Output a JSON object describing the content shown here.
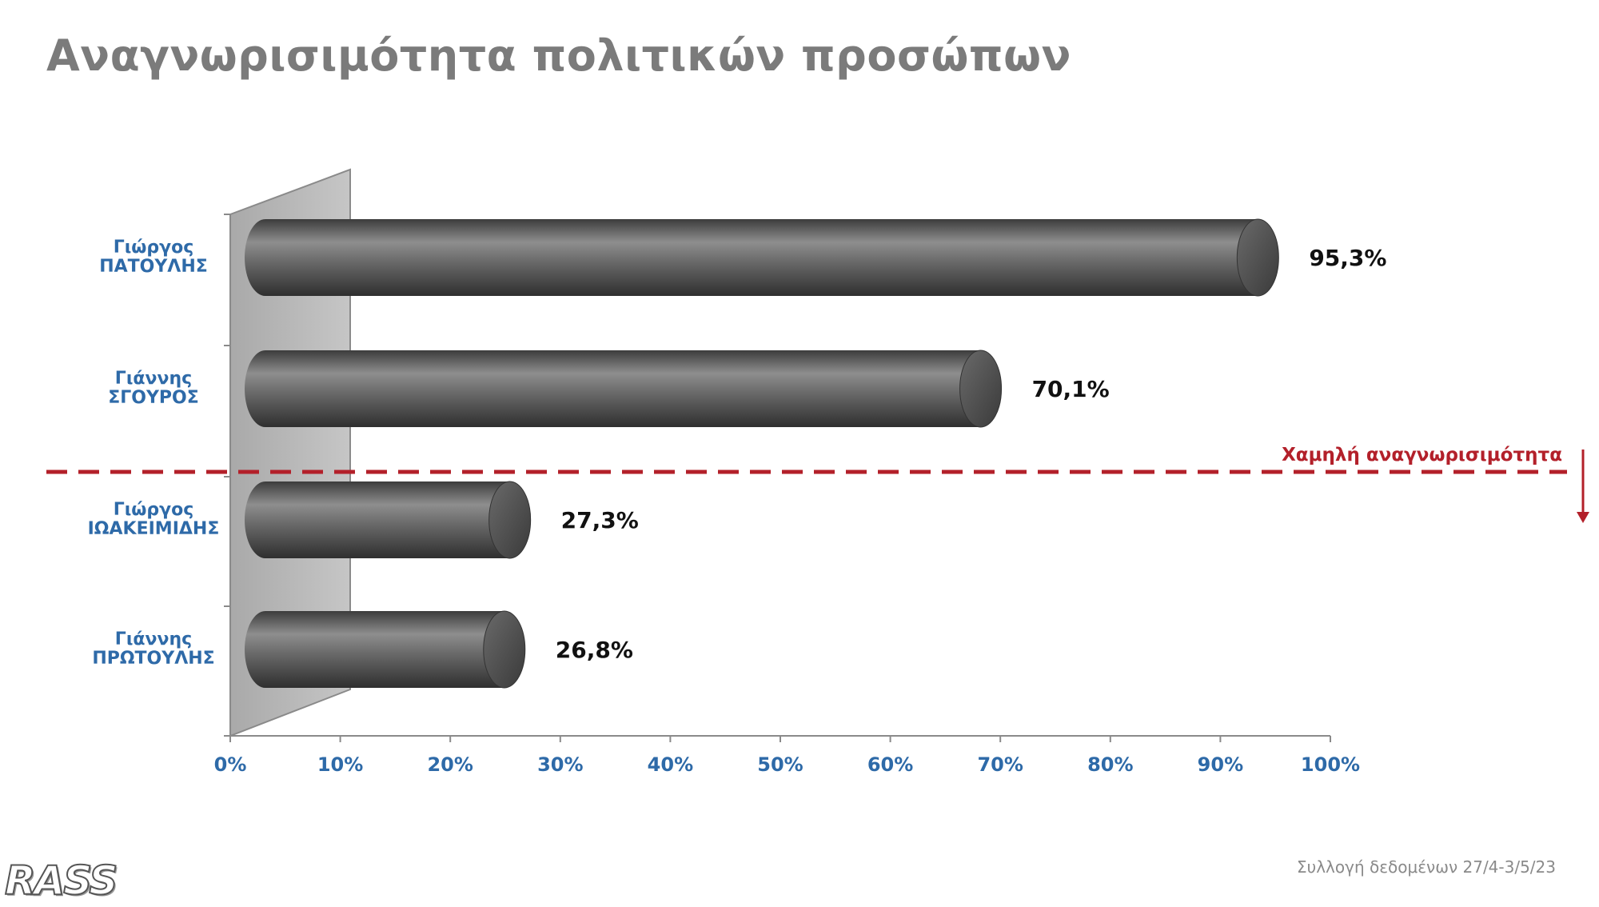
{
  "title": "Αναγνωρισιμότητα πολιτικών προσώπων",
  "footer": {
    "logo_text": "RASS",
    "source": "Συλλογή δεδομένων 27/4-3/5/23"
  },
  "chart_data": {
    "type": "bar",
    "orientation": "horizontal",
    "categories": [
      [
        "Γιώργος",
        "ΠΑΤΟΥΛΗΣ"
      ],
      [
        "Γιάννης",
        "ΣΓΟΥΡΟΣ"
      ],
      [
        "Γιώργος",
        "ΙΩΑΚΕΙΜΙΔΗΣ"
      ],
      [
        "Γιάννης",
        "ΠΡΩΤΟΥΛΗΣ"
      ]
    ],
    "values": [
      95.3,
      70.1,
      27.3,
      26.8
    ],
    "value_labels": [
      "95,3%",
      "70,1%",
      "27,3%",
      "26,8%"
    ],
    "xlim": [
      0,
      100
    ],
    "x_ticks": [
      "0%",
      "10%",
      "20%",
      "30%",
      "40%",
      "50%",
      "60%",
      "70%",
      "80%",
      "90%",
      "100%"
    ],
    "grid": false,
    "threshold": {
      "label": "Χαμηλή αναγνωρισιμότητα",
      "between_categories": [
        1,
        2
      ],
      "color": "#b3202a"
    },
    "colors": {
      "bar": "#5e5e5e",
      "label": "#2e6aa8",
      "threshold": "#b3202a"
    }
  }
}
